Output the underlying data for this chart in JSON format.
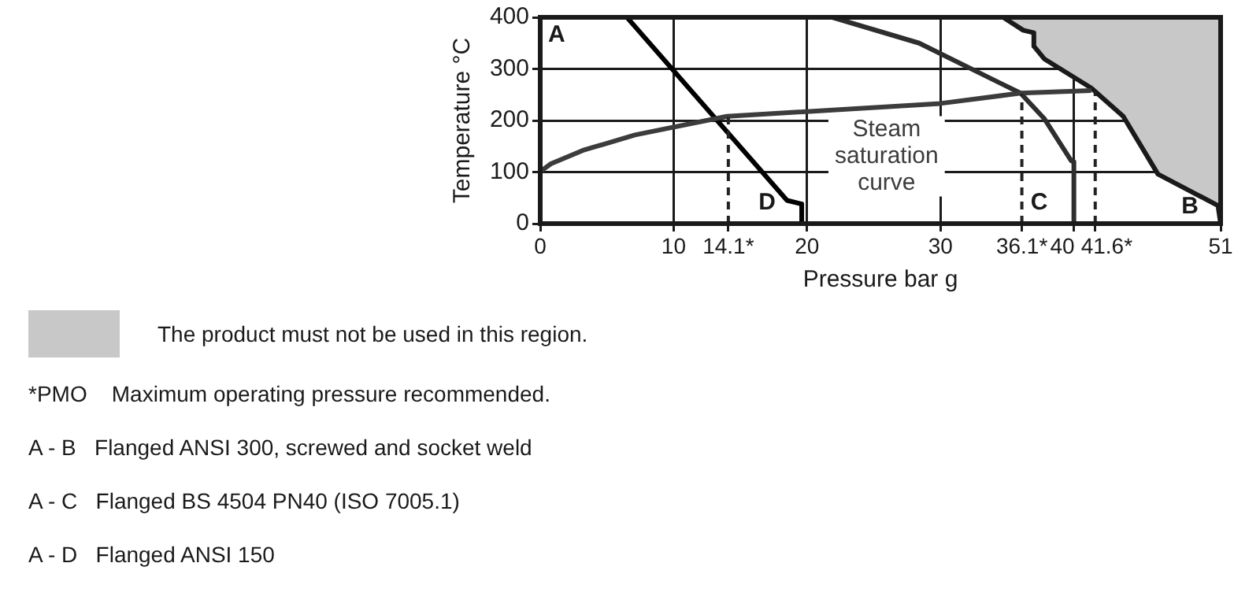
{
  "chart_data": {
    "type": "line",
    "xlabel": "Pressure bar g",
    "ylabel": "Temperature °C",
    "xlim": [
      0,
      51
    ],
    "ylim": [
      0,
      400
    ],
    "xticks": [
      0,
      10,
      {
        "value": 14.1,
        "label": "14.1*"
      },
      20,
      30,
      {
        "value": 36.1,
        "label": "36.1*"
      },
      40,
      {
        "value": 41.6,
        "label": "41.6*"
      },
      51
    ],
    "yticks": [
      0,
      100,
      200,
      300,
      400
    ],
    "grid": true,
    "legend": "bottom",
    "marker": "none",
    "series": [
      {
        "name": "The product must not be used in this region.",
        "type": "area",
        "color": "#c8c8c8",
        "x": [
          34.7,
          36.2,
          37,
          37,
          37.8,
          41.3,
          43.7,
          46.3,
          50.8,
          51,
          51
        ],
        "values": [
          400,
          375,
          370,
          344,
          319,
          263,
          208,
          96,
          35,
          0,
          400
        ]
      },
      {
        "name": "C",
        "type": "line",
        "color": "#2e2e2e",
        "x": [
          21.9,
          28.4,
          36,
          37.8,
          39.8,
          40,
          40
        ],
        "values": [
          400,
          350,
          253,
          203,
          122,
          120,
          0
        ]
      },
      {
        "name": "D",
        "type": "line",
        "color": "#000000",
        "x": [
          6.5,
          18.5,
          19.6,
          19.6
        ],
        "values": [
          400,
          45,
          38,
          0
        ]
      },
      {
        "name": "Steam saturation curve",
        "type": "line",
        "color": "#3c3c3c",
        "x": [
          0,
          0.8,
          3.2,
          7.1,
          14,
          30,
          36,
          41.3
        ],
        "values": [
          101,
          116,
          142,
          172,
          208,
          233,
          253,
          258
        ]
      },
      {
        "type": "line",
        "color": "#222222",
        "line_style": "dashed",
        "x": [
          14.1,
          14.1
        ],
        "values": [
          0,
          206
        ]
      },
      {
        "type": "line",
        "color": "#222222",
        "line_style": "dashed",
        "x": [
          36.1,
          36.1
        ],
        "values": [
          0,
          252
        ]
      },
      {
        "type": "line",
        "color": "#222222",
        "line_style": "dashed",
        "x": [
          41.6,
          41.6
        ],
        "values": [
          0,
          257
        ]
      }
    ],
    "annotations": [
      "A",
      "B",
      "*PMO    Maximum operating pressure recommended.",
      "A - B   Flanged ANSI 300, screwed and socket weld",
      "A - C   Flanged BS 4504 PN40 (ISO 7005.1)",
      "A - D   Flanged ANSI 150"
    ]
  }
}
